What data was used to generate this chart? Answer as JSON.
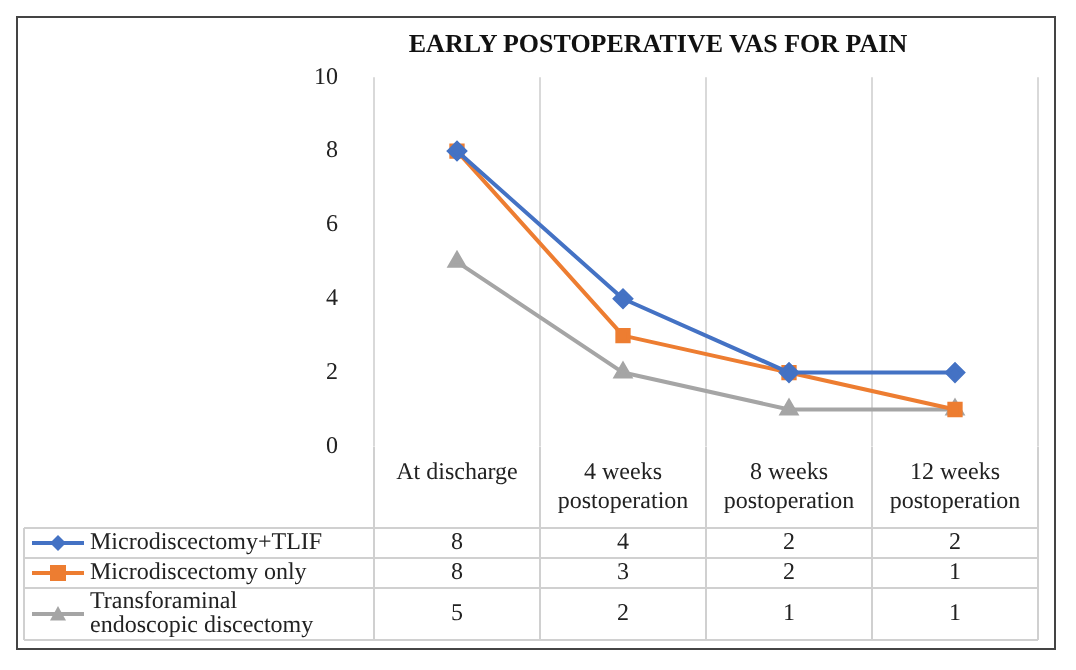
{
  "chart_data": {
    "type": "line",
    "title": "EARLY POSTOPERATIVE VAS FOR PAIN",
    "categories": [
      "At discharge",
      "4 weeks postoperation",
      "8 weeks postoperation",
      "12 weeks postoperation"
    ],
    "series": [
      {
        "name": "Microdiscectomy+TLIF",
        "color": "#4472c4",
        "marker": "diamond",
        "values": [
          8,
          4,
          2,
          2
        ]
      },
      {
        "name": "Microdiscectomy only",
        "color": "#ed7d31",
        "marker": "square",
        "values": [
          8,
          3,
          2,
          1
        ]
      },
      {
        "name": "Transforaminal endoscopic discectomy",
        "color": "#a5a5a5",
        "marker": "triangle",
        "values": [
          5,
          2,
          1,
          1
        ]
      }
    ],
    "ylim": [
      0,
      10
    ],
    "yticks": [
      0,
      2,
      4,
      6,
      8,
      10
    ],
    "grid": "x",
    "legend": "bottom",
    "data_labels": true
  }
}
